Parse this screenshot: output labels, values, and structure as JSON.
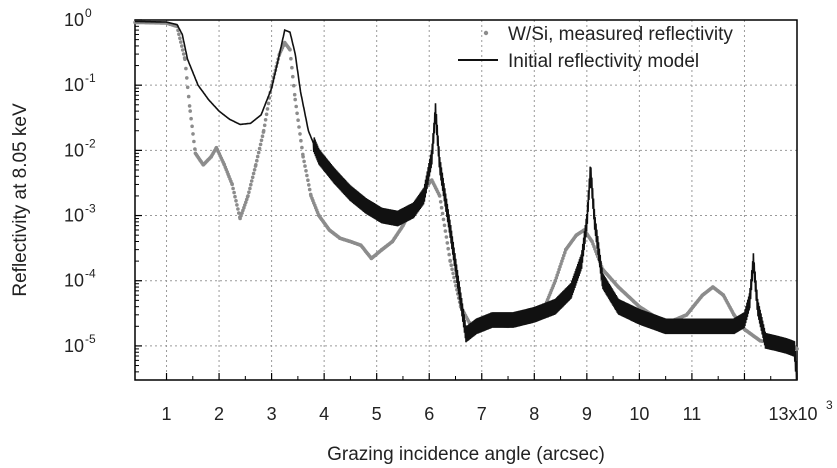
{
  "chart_data": {
    "type": "line",
    "title": "",
    "xlabel": "Grazing incidence angle (arcsec)",
    "ylabel": "Reflectivity at 8.05 keV",
    "xscale": "linear",
    "yscale": "log",
    "xlim": [
      400,
      13000
    ],
    "ylim": [
      3e-06,
      1
    ],
    "x_ticks": [
      1000,
      2000,
      3000,
      4000,
      5000,
      6000,
      7000,
      8000,
      9000,
      10000,
      11000,
      12000,
      13000
    ],
    "x_tick_labels": [
      "1",
      "2",
      "3",
      "4",
      "5",
      "6",
      "7",
      "8",
      "9",
      "10",
      "11",
      "",
      "13x10"
    ],
    "x_tick_exponent": "3",
    "y_ticks": [
      1e-05,
      0.0001,
      0.001,
      0.01,
      0.1,
      1
    ],
    "y_tick_base": "10",
    "y_tick_exponents": [
      "-5",
      "-4",
      "-3",
      "-2",
      "-1",
      "0"
    ],
    "grid": true,
    "legend_position": "top-right",
    "series": [
      {
        "name": "W/Si, measured reflectivity",
        "style": "dots",
        "color": "#8c8c8c",
        "points": [
          [
            400,
            0.92
          ],
          [
            1000,
            0.9
          ],
          [
            1200,
            0.8
          ],
          [
            1350,
            0.25
          ],
          [
            1450,
            0.04
          ],
          [
            1550,
            0.009
          ],
          [
            1700,
            0.006
          ],
          [
            1850,
            0.008
          ],
          [
            1950,
            0.011
          ],
          [
            2100,
            0.006
          ],
          [
            2250,
            0.003
          ],
          [
            2400,
            0.0009
          ],
          [
            2550,
            0.002
          ],
          [
            2700,
            0.006
          ],
          [
            2850,
            0.02
          ],
          [
            3000,
            0.1
          ],
          [
            3150,
            0.3
          ],
          [
            3250,
            0.45
          ],
          [
            3350,
            0.35
          ],
          [
            3450,
            0.06
          ],
          [
            3600,
            0.008
          ],
          [
            3750,
            0.002
          ],
          [
            3900,
            0.001
          ],
          [
            4100,
            0.0006
          ],
          [
            4300,
            0.00045
          ],
          [
            4500,
            0.0004
          ],
          [
            4700,
            0.00035
          ],
          [
            4900,
            0.00022
          ],
          [
            5100,
            0.0003
          ],
          [
            5300,
            0.0004
          ],
          [
            5500,
            0.0007
          ],
          [
            5700,
            0.0014
          ],
          [
            5900,
            0.0025
          ],
          [
            6050,
            0.0035
          ],
          [
            6200,
            0.002
          ],
          [
            6400,
            0.0002
          ],
          [
            6600,
            4e-05
          ],
          [
            6800,
            2e-05
          ],
          [
            7000,
            2.2e-05
          ],
          [
            7500,
            2e-05
          ],
          [
            7900,
            2.5e-05
          ],
          [
            8200,
            4e-05
          ],
          [
            8400,
            0.0001
          ],
          [
            8600,
            0.0003
          ],
          [
            8800,
            0.0005
          ],
          [
            8950,
            0.0006
          ],
          [
            9100,
            0.0004
          ],
          [
            9300,
            0.00015
          ],
          [
            9600,
            8e-05
          ],
          [
            10000,
            4e-05
          ],
          [
            10500,
            2.2e-05
          ],
          [
            10900,
            3e-05
          ],
          [
            11200,
            6e-05
          ],
          [
            11400,
            8e-05
          ],
          [
            11600,
            6e-05
          ],
          [
            11800,
            3e-05
          ],
          [
            12000,
            1.8e-05
          ],
          [
            12300,
            1.2e-05
          ],
          [
            12600,
            1.1e-05
          ],
          [
            12800,
            1.2e-05
          ],
          [
            13000,
            9e-06
          ]
        ]
      },
      {
        "name": "Initial reflectivity model",
        "style": "line",
        "color": "#111111",
        "points": [
          [
            400,
            0.95
          ],
          [
            1000,
            0.93
          ],
          [
            1200,
            0.85
          ],
          [
            1300,
            0.6
          ],
          [
            1400,
            0.25
          ],
          [
            1600,
            0.1
          ],
          [
            1800,
            0.06
          ],
          [
            2000,
            0.04
          ],
          [
            2200,
            0.03
          ],
          [
            2400,
            0.025
          ],
          [
            2600,
            0.026
          ],
          [
            2800,
            0.035
          ],
          [
            3000,
            0.09
          ],
          [
            3150,
            0.3
          ],
          [
            3250,
            0.7
          ],
          [
            3350,
            0.65
          ],
          [
            3450,
            0.3
          ],
          [
            3550,
            0.08
          ],
          [
            3700,
            0.02
          ],
          [
            3900,
            0.008
          ],
          [
            4200,
            0.004
          ],
          [
            4500,
            0.0022
          ],
          [
            4800,
            0.0014
          ],
          [
            5100,
            0.001
          ],
          [
            5400,
            0.0009
          ],
          [
            5700,
            0.0012
          ],
          [
            5900,
            0.002
          ],
          [
            6050,
            0.008
          ],
          [
            6120,
            0.04
          ],
          [
            6200,
            0.006
          ],
          [
            6400,
            0.0006
          ],
          [
            6600,
            5e-05
          ],
          [
            6700,
            1.5e-05
          ],
          [
            6900,
            2e-05
          ],
          [
            7200,
            2.5e-05
          ],
          [
            7600,
            2.5e-05
          ],
          [
            8000,
            3e-05
          ],
          [
            8400,
            4e-05
          ],
          [
            8700,
            7e-05
          ],
          [
            8900,
            0.0002
          ],
          [
            9000,
            0.0008
          ],
          [
            9070,
            0.005
          ],
          [
            9150,
            0.0008
          ],
          [
            9300,
            0.0001
          ],
          [
            9600,
            4e-05
          ],
          [
            10000,
            2.8e-05
          ],
          [
            10500,
            2e-05
          ],
          [
            11000,
            2e-05
          ],
          [
            11500,
            2e-05
          ],
          [
            11800,
            2e-05
          ],
          [
            12000,
            2.5e-05
          ],
          [
            12100,
            5e-05
          ],
          [
            12170,
            0.0002
          ],
          [
            12250,
            4e-05
          ],
          [
            12400,
            1.2e-05
          ],
          [
            12600,
            1.1e-05
          ],
          [
            12800,
            1e-05
          ],
          [
            12950,
            9e-06
          ],
          [
            13000,
            3e-06
          ]
        ]
      }
    ]
  }
}
